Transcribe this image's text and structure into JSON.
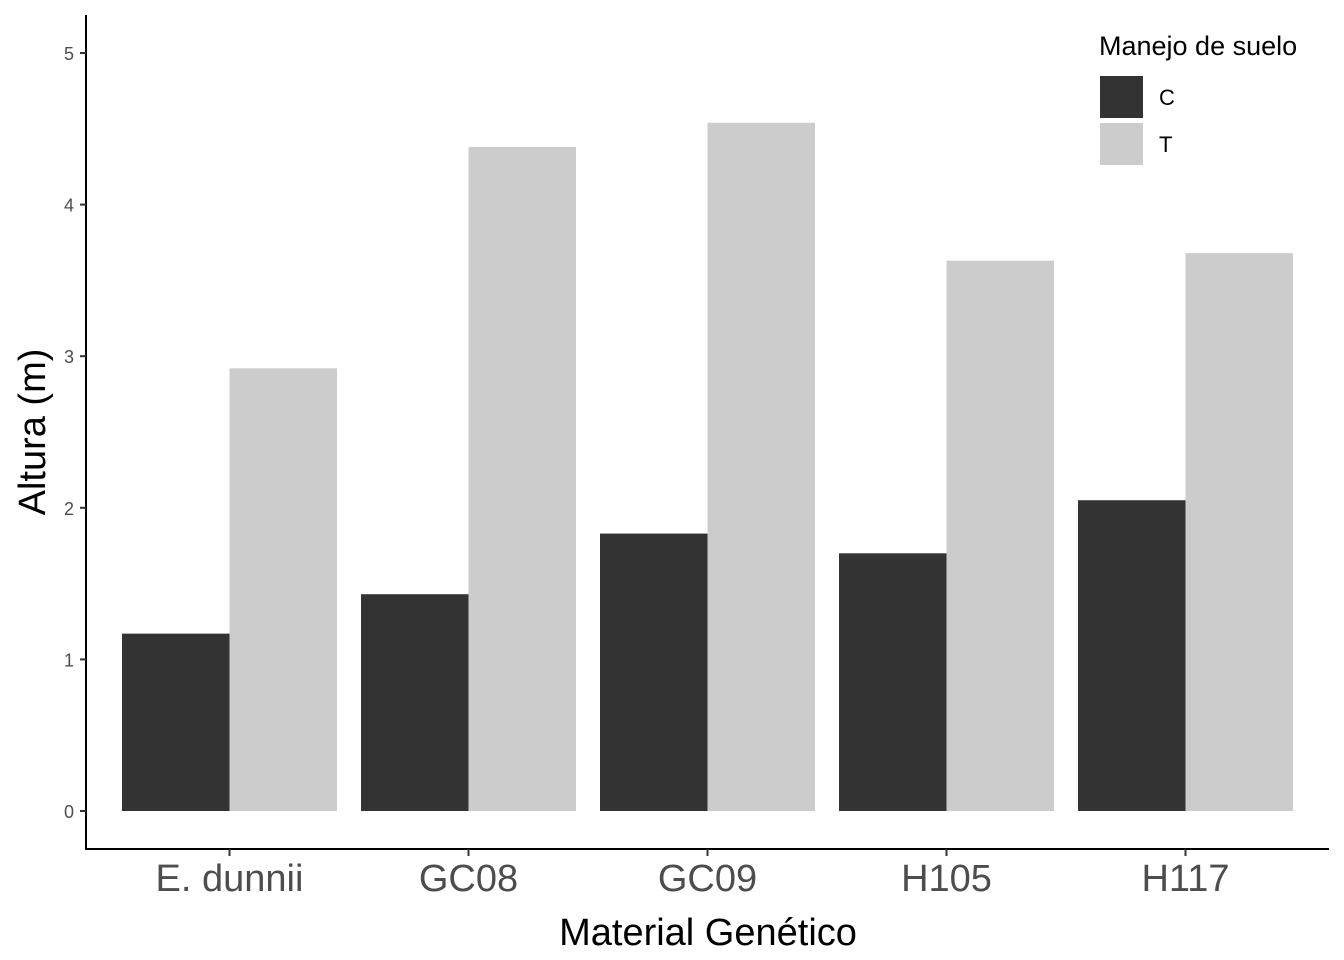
{
  "chart_data": {
    "type": "bar",
    "title": "",
    "xlabel": "Material Genético",
    "ylabel": "Altura (m)",
    "ylim": [
      0,
      5
    ],
    "yticks": [
      "0",
      "1",
      "2",
      "3",
      "4",
      "5"
    ],
    "grid": false,
    "legend": {
      "title": "Manejo de suelo",
      "position": "top-right"
    },
    "categories": [
      "E. dunnii",
      "GC08",
      "GC09",
      "H105",
      "H117"
    ],
    "series": [
      {
        "name": "C",
        "color": "#333333",
        "values": [
          1.17,
          1.43,
          1.83,
          1.7,
          2.05
        ]
      },
      {
        "name": "T",
        "color": "#cccccc",
        "values": [
          2.92,
          4.38,
          4.54,
          3.63,
          3.68
        ]
      }
    ]
  }
}
